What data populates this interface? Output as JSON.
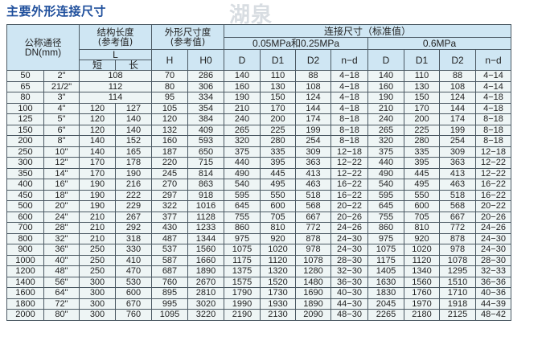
{
  "title": "主要外形连接尺寸",
  "watermark": "湖泉",
  "header": {
    "dn": "公称通径",
    "dn_unit": "DN(mm)",
    "struct_len": "结构长度",
    "struct_ref": "(参考值)",
    "outline": "外形尺寸度",
    "outline_ref": "(参考值)",
    "conn": "连接尺寸（标准值）",
    "p1": "0.05MPa和0.25MPa",
    "p2": "0.6MPa",
    "L": "L",
    "short": "短",
    "long": "长",
    "H": "H",
    "H0": "H0",
    "D": "D",
    "D1": "D1",
    "D2": "D2",
    "nd": "n−d"
  },
  "rows": [
    [
      "50",
      "2\"",
      "108",
      null,
      "70",
      "286",
      "140",
      "110",
      "88",
      "4−18",
      "140",
      "110",
      "88",
      "4−14"
    ],
    [
      "65",
      "21/2\"",
      "112",
      null,
      "80",
      "306",
      "160",
      "130",
      "108",
      "4−18",
      "160",
      "130",
      "108",
      "4−14"
    ],
    [
      "80",
      "3\"",
      "114",
      null,
      "95",
      "334",
      "190",
      "150",
      "124",
      "4−18",
      "190",
      "150",
      "124",
      "4−18"
    ],
    [
      "100",
      "4\"",
      "120",
      "127",
      "105",
      "354",
      "210",
      "170",
      "144",
      "4−18",
      "210",
      "170",
      "144",
      "4−18"
    ],
    [
      "125",
      "5\"",
      "120",
      "140",
      "120",
      "384",
      "240",
      "200",
      "174",
      "8−18",
      "240",
      "200",
      "174",
      "8−18"
    ],
    [
      "150",
      "6\"",
      "120",
      "140",
      "132",
      "409",
      "265",
      "225",
      "199",
      "8−18",
      "265",
      "225",
      "199",
      "8−18"
    ],
    [
      "200",
      "8\"",
      "140",
      "152",
      "160",
      "593",
      "320",
      "280",
      "254",
      "8−18",
      "320",
      "280",
      "254",
      "8−18"
    ],
    [
      "250",
      "10\"",
      "140",
      "165",
      "187",
      "650",
      "375",
      "335",
      "309",
      "12−18",
      "375",
      "335",
      "309",
      "12−18"
    ],
    [
      "300",
      "12\"",
      "170",
      "178",
      "220",
      "715",
      "440",
      "395",
      "363",
      "12−22",
      "440",
      "395",
      "363",
      "12−22"
    ],
    [
      "350",
      "14\"",
      "170",
      "190",
      "245",
      "814",
      "490",
      "445",
      "413",
      "12−22",
      "490",
      "445",
      "413",
      "12−22"
    ],
    [
      "400",
      "16\"",
      "190",
      "216",
      "270",
      "863",
      "540",
      "495",
      "463",
      "16−22",
      "540",
      "495",
      "463",
      "16−22"
    ],
    [
      "450",
      "18\"",
      "190",
      "222",
      "297",
      "918",
      "595",
      "550",
      "518",
      "16−22",
      "595",
      "550",
      "518",
      "16−22"
    ],
    [
      "500",
      "20\"",
      "190",
      "229",
      "322",
      "1016",
      "645",
      "600",
      "568",
      "20−22",
      "645",
      "600",
      "568",
      "20−22"
    ],
    [
      "600",
      "24\"",
      "210",
      "267",
      "377",
      "1128",
      "755",
      "705",
      "667",
      "20−26",
      "755",
      "705",
      "667",
      "20−26"
    ],
    [
      "700",
      "28\"",
      "210",
      "292",
      "430",
      "1233",
      "860",
      "810",
      "772",
      "24−26",
      "860",
      "810",
      "772",
      "24−26"
    ],
    [
      "800",
      "32\"",
      "210",
      "318",
      "487",
      "1344",
      "975",
      "920",
      "878",
      "24−30",
      "975",
      "920",
      "878",
      "24−30"
    ],
    [
      "900",
      "36\"",
      "250",
      "330",
      "537",
      "1560",
      "1075",
      "1020",
      "978",
      "24−30",
      "1075",
      "1020",
      "978",
      "24−30"
    ],
    [
      "1000",
      "40\"",
      "250",
      "410",
      "587",
      "1660",
      "1175",
      "1120",
      "1078",
      "28−30",
      "1175",
      "1120",
      "1078",
      "28−30"
    ],
    [
      "1200",
      "48\"",
      "250",
      "470",
      "687",
      "1890",
      "1375",
      "1320",
      "1280",
      "32−30",
      "1405",
      "1340",
      "1295",
      "32−33"
    ],
    [
      "1400",
      "56\"",
      "300",
      "530",
      "760",
      "2670",
      "1575",
      "1520",
      "1480",
      "36−30",
      "1630",
      "1560",
      "1510",
      "36−36"
    ],
    [
      "1600",
      "64\"",
      "300",
      "600",
      "895",
      "2810",
      "1790",
      "1730",
      "1690",
      "40−30",
      "1830",
      "1760",
      "1710",
      "40−36"
    ],
    [
      "1800",
      "72\"",
      "300",
      "670",
      "995",
      "3020",
      "1990",
      "1930",
      "1890",
      "44−30",
      "2045",
      "1970",
      "1918",
      "44−39"
    ],
    [
      "2000",
      "80\"",
      "300",
      "760",
      "1095",
      "3220",
      "2190",
      "2130",
      "2090",
      "48−30",
      "2265",
      "2180",
      "2125",
      "48−42"
    ]
  ],
  "colors": {
    "title": "#1f4f9c",
    "header_bg": "#cfe6f3",
    "row_bg": "#eef5f5",
    "border": "#4b5963"
  }
}
